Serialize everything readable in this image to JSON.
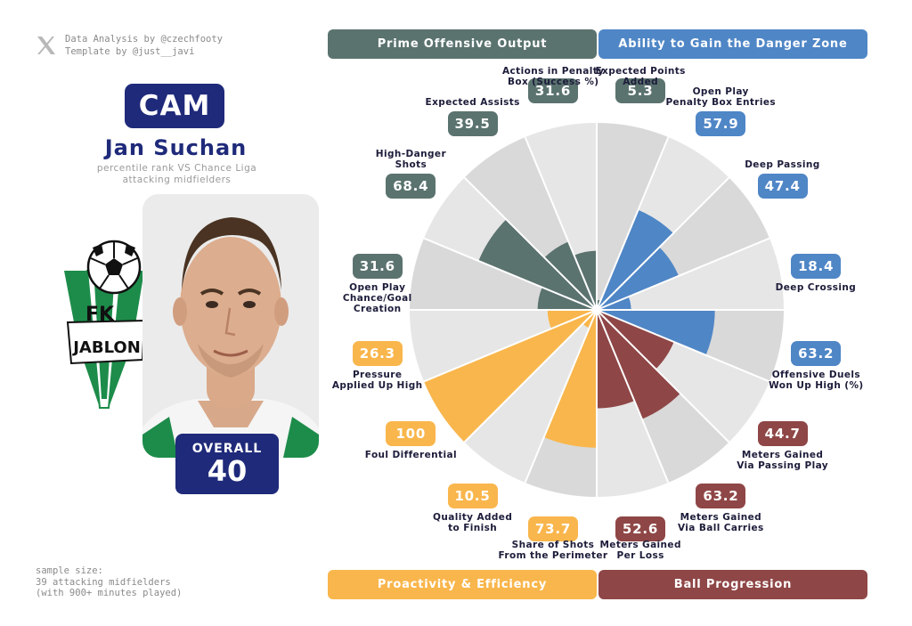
{
  "credits": {
    "line1": "Data Analysis by @czechfooty",
    "line2": "Template by @just__javi",
    "icon": "x-logo-icon"
  },
  "player": {
    "position": "CAM",
    "name": "Jan Suchan",
    "subtitle_line1": "percentile rank VS Chance Liga",
    "subtitle_line2": "attacking midfielders",
    "club_logo_text_1": "FK",
    "club_logo_text_2": "JABLON",
    "overall_label": "OVERALL",
    "overall_value": "40"
  },
  "sample": {
    "line1": "sample size:",
    "line2": "39 attacking midfielders",
    "line3": "(with 900+ minutes played)"
  },
  "colors": {
    "prime": "#5b736f",
    "danger": "#4f86c6",
    "proactivity": "#f9b64c",
    "progression": "#8f4646",
    "navy": "#1f2a7a",
    "wedge_bg": "#dcdcdc"
  },
  "categories": {
    "prime": "Prime Offensive Output",
    "danger": "Ability to Gain the Danger Zone",
    "proactivity": "Proactivity & Efficiency",
    "progression": "Ball Progression"
  },
  "chart_data": {
    "type": "polar-bar",
    "title": "",
    "range": [
      0,
      100
    ],
    "metrics": [
      {
        "label_lines": [
          "Expected Points",
          "Added"
        ],
        "value": 5.3,
        "display": "5.3",
        "group": "prime"
      },
      {
        "label_lines": [
          "Open Play",
          "Penalty Box Entries"
        ],
        "value": 57.9,
        "display": "57.9",
        "group": "danger"
      },
      {
        "label_lines": [
          "Deep Passing"
        ],
        "value": 47.4,
        "display": "47.4",
        "group": "danger"
      },
      {
        "label_lines": [
          "Deep Crossing"
        ],
        "value": 18.4,
        "display": "18.4",
        "group": "danger"
      },
      {
        "label_lines": [
          "Offensive Duels",
          "Won Up High (%)"
        ],
        "value": 63.2,
        "display": "63.2",
        "group": "danger"
      },
      {
        "label_lines": [
          "Meters Gained",
          "Via Passing Play"
        ],
        "value": 44.7,
        "display": "44.7",
        "group": "progression"
      },
      {
        "label_lines": [
          "Meters Gained",
          "Via Ball Carries"
        ],
        "value": 63.2,
        "display": "63.2",
        "group": "progression"
      },
      {
        "label_lines": [
          "Meters Gained",
          "Per Loss"
        ],
        "value": 52.6,
        "display": "52.6",
        "group": "progression"
      },
      {
        "label_lines": [
          "Share of Shots",
          "From the Perimeter"
        ],
        "value": 73.7,
        "display": "73.7",
        "group": "proactivity"
      },
      {
        "label_lines": [
          "Quality Added",
          "to Finish"
        ],
        "value": 10.5,
        "display": "10.5",
        "group": "proactivity"
      },
      {
        "label_lines": [
          "Foul Differential"
        ],
        "value": 100,
        "display": "100",
        "group": "proactivity"
      },
      {
        "label_lines": [
          "Pressure",
          "Applied Up High"
        ],
        "value": 26.3,
        "display": "26.3",
        "group": "proactivity"
      },
      {
        "label_lines": [
          "Open Play",
          "Chance/Goal",
          "Creation"
        ],
        "value": 31.6,
        "display": "31.6",
        "group": "prime"
      },
      {
        "label_lines": [
          "High-Danger",
          "Shots"
        ],
        "value": 68.4,
        "display": "68.4",
        "group": "prime"
      },
      {
        "label_lines": [
          "Expected Assists"
        ],
        "value": 39.5,
        "display": "39.5",
        "group": "prime"
      },
      {
        "label_lines": [
          "Actions in Penalty",
          "Box (Success %)"
        ],
        "value": 31.6,
        "display": "31.6",
        "group": "prime"
      }
    ]
  }
}
